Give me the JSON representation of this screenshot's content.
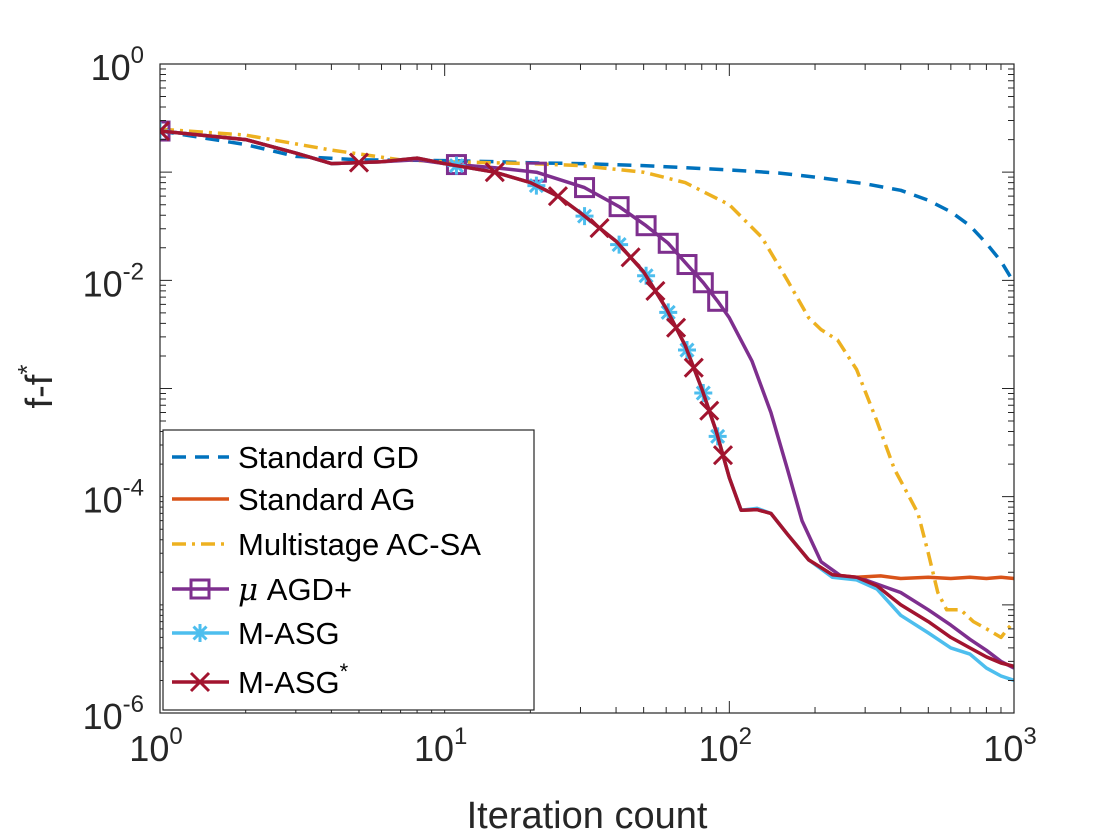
{
  "chart_data": {
    "type": "line",
    "title": "",
    "xlabel": "Iteration count",
    "ylabel": "f-f",
    "ylabel_sup": "*",
    "xscale": "log",
    "yscale": "log",
    "xlim": [
      1,
      1000
    ],
    "ylim": [
      1e-06,
      1
    ],
    "grid": false,
    "legend_position": "bottom-left",
    "x_ticks": [
      {
        "base": "10",
        "exp": "0",
        "value": 1
      },
      {
        "base": "10",
        "exp": "1",
        "value": 10
      },
      {
        "base": "10",
        "exp": "2",
        "value": 100
      },
      {
        "base": "10",
        "exp": "3",
        "value": 1000
      }
    ],
    "y_ticks": [
      {
        "base": "10",
        "exp": "0",
        "value": 1
      },
      {
        "base": "10",
        "exp": "-2",
        "value": 0.01
      },
      {
        "base": "10",
        "exp": "-4",
        "value": 0.0001
      },
      {
        "base": "10",
        "exp": "-6",
        "value": 1e-06
      }
    ],
    "series": [
      {
        "name": "Standard GD",
        "legend_label": "Standard GD",
        "color": "#0072BD",
        "dash": "dashed",
        "marker": "none",
        "points": [
          [
            1,
            0.24
          ],
          [
            2,
            0.18
          ],
          [
            3,
            0.14
          ],
          [
            5,
            0.13
          ],
          [
            10,
            0.128
          ],
          [
            15,
            0.125
          ],
          [
            20,
            0.122
          ],
          [
            30,
            0.12
          ],
          [
            50,
            0.115
          ],
          [
            70,
            0.11
          ],
          [
            100,
            0.105
          ],
          [
            150,
            0.098
          ],
          [
            200,
            0.09
          ],
          [
            300,
            0.078
          ],
          [
            400,
            0.068
          ],
          [
            500,
            0.055
          ],
          [
            600,
            0.043
          ],
          [
            700,
            0.032
          ],
          [
            800,
            0.022
          ],
          [
            900,
            0.015
          ],
          [
            1000,
            0.0095
          ]
        ]
      },
      {
        "name": "Standard AG",
        "legend_label": "Standard AG",
        "color": "#D95319",
        "dash": "solid",
        "marker": "none",
        "points": [
          [
            1,
            0.24
          ],
          [
            2,
            0.2
          ],
          [
            3,
            0.15
          ],
          [
            4,
            0.12
          ],
          [
            6,
            0.125
          ],
          [
            8,
            0.135
          ],
          [
            10,
            0.12
          ],
          [
            15,
            0.1
          ],
          [
            20,
            0.08
          ],
          [
            25,
            0.06
          ],
          [
            30,
            0.042
          ],
          [
            40,
            0.023
          ],
          [
            50,
            0.012
          ],
          [
            60,
            0.0055
          ],
          [
            70,
            0.0025
          ],
          [
            80,
            0.001
          ],
          [
            90,
            0.0004
          ],
          [
            100,
            0.00015
          ],
          [
            110,
            7.5e-05
          ],
          [
            125,
            7.6e-05
          ],
          [
            140,
            7e-05
          ],
          [
            160,
            4.5e-05
          ],
          [
            190,
            2.6e-05
          ],
          [
            230,
            1.9e-05
          ],
          [
            280,
            1.8e-05
          ],
          [
            340,
            1.85e-05
          ],
          [
            400,
            1.75e-05
          ],
          [
            500,
            1.8e-05
          ],
          [
            600,
            1.75e-05
          ],
          [
            700,
            1.8e-05
          ],
          [
            800,
            1.75e-05
          ],
          [
            900,
            1.8e-05
          ],
          [
            1000,
            1.75e-05
          ]
        ]
      },
      {
        "name": "Multistage AC-SA",
        "legend_label": "Multistage AC-SA",
        "color": "#EDB120",
        "dash": "dashdot",
        "marker": "none",
        "points": [
          [
            1,
            0.25
          ],
          [
            2,
            0.22
          ],
          [
            4,
            0.16
          ],
          [
            7,
            0.13
          ],
          [
            10,
            0.125
          ],
          [
            20,
            0.12
          ],
          [
            30,
            0.115
          ],
          [
            50,
            0.1
          ],
          [
            70,
            0.08
          ],
          [
            100,
            0.05
          ],
          [
            130,
            0.025
          ],
          [
            160,
            0.01
          ],
          [
            190,
            0.0045
          ],
          [
            210,
            0.0035
          ],
          [
            240,
            0.0028
          ],
          [
            280,
            0.0015
          ],
          [
            330,
            0.0005
          ],
          [
            380,
            0.00018
          ],
          [
            420,
            0.00011
          ],
          [
            460,
            7e-05
          ],
          [
            500,
            3e-05
          ],
          [
            540,
            1.3e-05
          ],
          [
            580,
            9e-06
          ],
          [
            650,
            9e-06
          ],
          [
            720,
            7e-06
          ],
          [
            800,
            6e-06
          ],
          [
            900,
            5e-06
          ],
          [
            950,
            6e-06
          ],
          [
            1000,
            7e-06
          ]
        ]
      },
      {
        "name": "μ AGD+",
        "legend_label": " AGD+",
        "legend_symbol": "μ",
        "color": "#7E2F8E",
        "dash": "solid",
        "marker": "square",
        "points": [
          [
            1,
            0.24
          ],
          [
            2,
            0.2
          ],
          [
            3,
            0.15
          ],
          [
            4,
            0.12
          ],
          [
            6,
            0.125
          ],
          [
            8,
            0.13
          ],
          [
            10,
            0.12
          ],
          [
            15,
            0.11
          ],
          [
            21,
            0.1
          ],
          [
            31,
            0.072
          ],
          [
            41,
            0.048
          ],
          [
            51,
            0.032
          ],
          [
            61,
            0.022
          ],
          [
            71,
            0.014
          ],
          [
            81,
            0.0095
          ],
          [
            91,
            0.0064
          ],
          [
            100,
            0.0045
          ],
          [
            120,
            0.0018
          ],
          [
            140,
            0.0006
          ],
          [
            160,
            0.00018
          ],
          [
            180,
            6e-05
          ],
          [
            210,
            2.5e-05
          ],
          [
            250,
            1.8e-05
          ],
          [
            300,
            1.7e-05
          ],
          [
            400,
            1.3e-05
          ],
          [
            500,
            9e-06
          ],
          [
            600,
            6.5e-06
          ],
          [
            700,
            4.8e-06
          ],
          [
            800,
            3.8e-06
          ],
          [
            900,
            3e-06
          ],
          [
            1000,
            2.6e-06
          ]
        ],
        "marker_x": [
          1,
          11,
          21,
          31,
          41,
          51,
          61,
          71,
          81,
          91
        ]
      },
      {
        "name": "M-ASG",
        "legend_label": "M-ASG",
        "color": "#4DBEEE",
        "dash": "solid",
        "marker": "asterisk",
        "points": [
          [
            1,
            0.24
          ],
          [
            2,
            0.2
          ],
          [
            3,
            0.15
          ],
          [
            4,
            0.12
          ],
          [
            6,
            0.125
          ],
          [
            8,
            0.135
          ],
          [
            10,
            0.12
          ],
          [
            15,
            0.1
          ],
          [
            20,
            0.08
          ],
          [
            25,
            0.06
          ],
          [
            30,
            0.042
          ],
          [
            40,
            0.023
          ],
          [
            50,
            0.012
          ],
          [
            60,
            0.0055
          ],
          [
            70,
            0.0025
          ],
          [
            80,
            0.001
          ],
          [
            90,
            0.0004
          ],
          [
            100,
            0.00015
          ],
          [
            110,
            7.5e-05
          ],
          [
            125,
            7.8e-05
          ],
          [
            140,
            7e-05
          ],
          [
            160,
            4.5e-05
          ],
          [
            190,
            2.6e-05
          ],
          [
            230,
            1.8e-05
          ],
          [
            280,
            1.7e-05
          ],
          [
            330,
            1.4e-05
          ],
          [
            400,
            8e-06
          ],
          [
            500,
            5.5e-06
          ],
          [
            600,
            4e-06
          ],
          [
            700,
            3.5e-06
          ],
          [
            800,
            2.6e-06
          ],
          [
            900,
            2.2e-06
          ],
          [
            1000,
            2e-06
          ]
        ],
        "marker_x": [
          1,
          11,
          21,
          31,
          41,
          51,
          61,
          71,
          81,
          91
        ]
      },
      {
        "name": "M-ASG*",
        "legend_label": "M-ASG",
        "legend_sup": "*",
        "color": "#A2142F",
        "dash": "solid",
        "marker": "x",
        "points": [
          [
            1,
            0.24
          ],
          [
            2,
            0.2
          ],
          [
            3,
            0.15
          ],
          [
            4,
            0.12
          ],
          [
            6,
            0.125
          ],
          [
            8,
            0.135
          ],
          [
            10,
            0.12
          ],
          [
            15,
            0.1
          ],
          [
            20,
            0.08
          ],
          [
            25,
            0.06
          ],
          [
            30,
            0.042
          ],
          [
            40,
            0.023
          ],
          [
            50,
            0.012
          ],
          [
            60,
            0.0055
          ],
          [
            70,
            0.0025
          ],
          [
            80,
            0.001
          ],
          [
            90,
            0.0004
          ],
          [
            100,
            0.00015
          ],
          [
            110,
            7.5e-05
          ],
          [
            125,
            7.6e-05
          ],
          [
            140,
            7e-05
          ],
          [
            160,
            4.5e-05
          ],
          [
            190,
            2.6e-05
          ],
          [
            230,
            1.9e-05
          ],
          [
            280,
            1.8e-05
          ],
          [
            330,
            1.5e-05
          ],
          [
            400,
            1e-05
          ],
          [
            500,
            7e-06
          ],
          [
            600,
            5e-06
          ],
          [
            700,
            4e-06
          ],
          [
            800,
            3.3e-06
          ],
          [
            900,
            2.9e-06
          ],
          [
            1000,
            2.7e-06
          ]
        ],
        "marker_x": [
          1,
          5,
          15,
          25,
          35,
          45,
          55,
          65,
          75,
          85,
          95
        ]
      }
    ]
  }
}
